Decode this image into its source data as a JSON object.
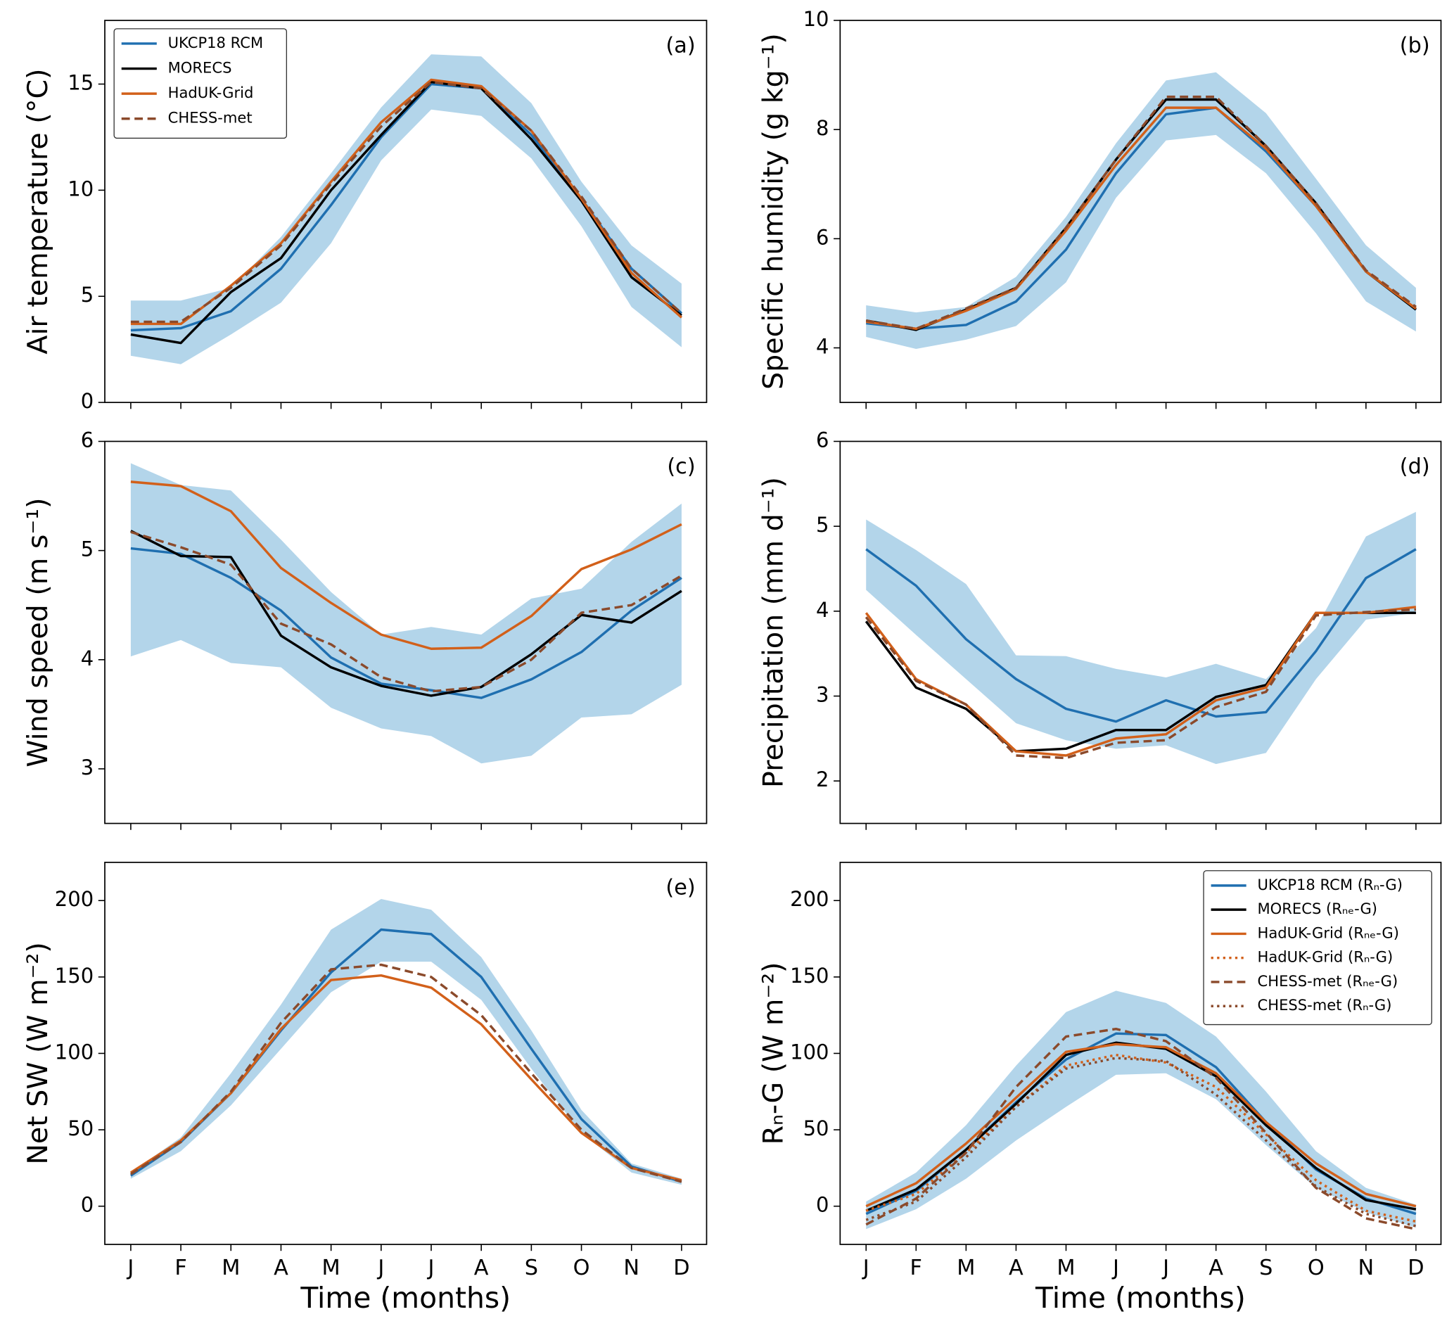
{
  "chart_data": [
    {
      "type": "line",
      "ylabel": "Air temperature (°C)",
      "panel_label": "(a)",
      "legend": "upper left",
      "categories": [
        "J",
        "F",
        "M",
        "A",
        "M",
        "J",
        "J",
        "A",
        "S",
        "O",
        "N",
        "D"
      ],
      "ylim": [
        0,
        18
      ],
      "yticks": [
        0,
        5,
        10,
        15
      ],
      "band": {
        "color": "#b3d5ea",
        "lower": [
          2.2,
          1.8,
          3.2,
          4.7,
          7.5,
          11.4,
          13.8,
          13.5,
          11.5,
          8.3,
          4.5,
          2.6
        ],
        "upper": [
          4.8,
          4.8,
          5.4,
          7.8,
          10.8,
          13.9,
          16.4,
          16.3,
          14.1,
          10.4,
          7.4,
          5.6
        ]
      },
      "series": [
        {
          "name": "UKCP18 RCM",
          "color": "#1f6fb0",
          "dash": "solid",
          "values": [
            3.4,
            3.5,
            4.3,
            6.3,
            9.3,
            12.5,
            15.0,
            14.8,
            12.6,
            9.6,
            6.3,
            4.2
          ]
        },
        {
          "name": "MORECS",
          "color": "#000000",
          "dash": "solid",
          "values": [
            3.2,
            2.8,
            5.2,
            6.8,
            10.0,
            12.6,
            15.1,
            14.8,
            12.4,
            9.5,
            5.9,
            4.1
          ]
        },
        {
          "name": "HadUK-Grid",
          "color": "#d2601a",
          "dash": "solid",
          "values": [
            3.7,
            3.7,
            5.5,
            7.5,
            10.4,
            13.2,
            15.2,
            14.9,
            12.8,
            9.6,
            6.1,
            4.0
          ]
        },
        {
          "name": "CHESS-met",
          "color": "#8b4a2b",
          "dash": "dashed",
          "values": [
            3.8,
            3.8,
            5.4,
            7.4,
            10.3,
            13.0,
            15.1,
            14.8,
            12.8,
            9.7,
            6.3,
            4.2
          ]
        }
      ]
    },
    {
      "type": "line",
      "ylabel": "Specific humidity (g kg⁻¹)",
      "panel_label": "(b)",
      "categories": [
        "J",
        "F",
        "M",
        "A",
        "M",
        "J",
        "J",
        "A",
        "S",
        "O",
        "N",
        "D"
      ],
      "ylim": [
        3,
        10
      ],
      "yticks": [
        4,
        6,
        8,
        10
      ],
      "band": {
        "color": "#b3d5ea",
        "lower": [
          4.2,
          3.98,
          4.15,
          4.4,
          5.2,
          6.75,
          7.8,
          7.9,
          7.2,
          6.1,
          4.85,
          4.3
        ],
        "upper": [
          4.78,
          4.65,
          4.75,
          5.3,
          6.4,
          7.75,
          8.9,
          9.05,
          8.3,
          7.1,
          5.88,
          5.1
        ]
      },
      "series": [
        {
          "name": "UKCP18 RCM",
          "color": "#1f6fb0",
          "dash": "solid",
          "values": [
            4.45,
            4.35,
            4.42,
            4.85,
            5.8,
            7.2,
            8.28,
            8.4,
            7.6,
            6.6,
            5.4,
            4.7
          ]
        },
        {
          "name": "MORECS",
          "color": "#000000",
          "dash": "solid",
          "values": [
            4.5,
            4.33,
            4.7,
            5.1,
            6.2,
            7.45,
            8.55,
            8.55,
            7.7,
            6.65,
            5.4,
            4.7
          ]
        },
        {
          "name": "HadUK-Grid",
          "color": "#d2601a",
          "dash": "solid",
          "values": [
            4.48,
            4.35,
            4.68,
            5.08,
            6.15,
            7.35,
            8.4,
            8.4,
            7.65,
            6.6,
            5.4,
            4.72
          ]
        },
        {
          "name": "CHESS-met",
          "color": "#8b4a2b",
          "dash": "dashed",
          "values": [
            4.5,
            4.35,
            4.72,
            5.1,
            6.2,
            7.45,
            8.6,
            8.6,
            7.7,
            6.65,
            5.42,
            4.75
          ]
        }
      ]
    },
    {
      "type": "line",
      "ylabel": "Wind speed (m s⁻¹)",
      "panel_label": "(c)",
      "categories": [
        "J",
        "F",
        "M",
        "A",
        "M",
        "J",
        "J",
        "A",
        "S",
        "O",
        "N",
        "D"
      ],
      "ylim": [
        2.5,
        6
      ],
      "yticks": [
        3,
        4,
        5,
        6
      ],
      "band": {
        "color": "#b3d5ea",
        "lower": [
          4.03,
          4.18,
          3.97,
          3.93,
          3.56,
          3.37,
          3.3,
          3.05,
          3.12,
          3.47,
          3.5,
          3.77
        ],
        "upper": [
          5.8,
          5.6,
          5.55,
          5.1,
          4.62,
          4.23,
          4.3,
          4.23,
          4.56,
          4.65,
          5.08,
          5.43
        ]
      },
      "series": [
        {
          "name": "UKCP18 RCM",
          "color": "#1f6fb0",
          "dash": "solid",
          "values": [
            5.02,
            4.97,
            4.75,
            4.45,
            4.02,
            3.78,
            3.72,
            3.65,
            3.82,
            4.07,
            4.45,
            4.75
          ]
        },
        {
          "name": "MORECS",
          "color": "#000000",
          "dash": "solid",
          "values": [
            5.18,
            4.95,
            4.94,
            4.22,
            3.93,
            3.76,
            3.67,
            3.75,
            4.05,
            4.41,
            4.34,
            4.63
          ]
        },
        {
          "name": "HadUK-Grid",
          "color": "#d2601a",
          "dash": "solid",
          "values": [
            5.63,
            5.59,
            5.36,
            4.84,
            4.52,
            4.23,
            4.1,
            4.11,
            4.4,
            4.83,
            5.01,
            5.24
          ]
        },
        {
          "name": "CHESS-met",
          "color": "#8b4a2b",
          "dash": "dashed",
          "values": [
            5.17,
            5.03,
            4.87,
            4.33,
            4.14,
            3.84,
            3.71,
            3.75,
            4.0,
            4.43,
            4.5,
            4.77
          ]
        }
      ]
    },
    {
      "type": "line",
      "ylabel": "Precipitation (mm d⁻¹)",
      "panel_label": "(d)",
      "categories": [
        "J",
        "F",
        "M",
        "A",
        "M",
        "J",
        "J",
        "A",
        "S",
        "O",
        "N",
        "D"
      ],
      "ylim": [
        1.5,
        6
      ],
      "yticks": [
        2,
        3,
        4,
        5,
        6
      ],
      "band": {
        "color": "#b3d5ea",
        "lower": [
          4.25,
          3.72,
          3.2,
          2.68,
          2.48,
          2.38,
          2.42,
          2.2,
          2.33,
          3.2,
          3.9,
          3.98
        ],
        "upper": [
          5.08,
          4.72,
          4.32,
          3.48,
          3.47,
          3.32,
          3.22,
          3.38,
          3.2,
          3.8,
          4.88,
          5.17
        ]
      },
      "series": [
        {
          "name": "UKCP18 RCM",
          "color": "#1f6fb0",
          "dash": "solid",
          "values": [
            4.73,
            4.3,
            3.67,
            3.2,
            2.85,
            2.7,
            2.95,
            2.76,
            2.81,
            3.53,
            4.39,
            4.73
          ]
        },
        {
          "name": "MORECS",
          "color": "#000000",
          "dash": "solid",
          "values": [
            3.88,
            3.1,
            2.85,
            2.35,
            2.38,
            2.6,
            2.6,
            2.99,
            3.13,
            3.98,
            3.98,
            3.98
          ]
        },
        {
          "name": "HadUK-Grid",
          "color": "#d2601a",
          "dash": "solid",
          "values": [
            3.98,
            3.2,
            2.9,
            2.35,
            2.3,
            2.5,
            2.55,
            2.95,
            3.1,
            3.98,
            3.98,
            4.05
          ]
        },
        {
          "name": "CHESS-met",
          "color": "#8b4a2b",
          "dash": "dashed",
          "values": [
            3.93,
            3.18,
            2.9,
            2.3,
            2.27,
            2.45,
            2.48,
            2.87,
            3.05,
            3.95,
            3.99,
            4.02
          ]
        }
      ]
    },
    {
      "type": "line",
      "ylabel": "Net SW (W m⁻²)",
      "xlabel": "Time (months)",
      "panel_label": "(e)",
      "categories": [
        "J",
        "F",
        "M",
        "A",
        "M",
        "J",
        "J",
        "A",
        "S",
        "O",
        "N",
        "D"
      ],
      "ylim": [
        -25,
        225
      ],
      "yticks": [
        0,
        50,
        100,
        150,
        200
      ],
      "band": {
        "color": "#b3d5ea",
        "lower": [
          18,
          36,
          66,
          103,
          140,
          160,
          160,
          135,
          90,
          48,
          22,
          14
        ],
        "upper": [
          22,
          45,
          87,
          132,
          181,
          201,
          194,
          163,
          115,
          63,
          28,
          18
        ]
      },
      "series": [
        {
          "name": "UKCP18 RCM",
          "color": "#1f6fb0",
          "dash": "solid",
          "values": [
            20,
            42,
            74,
            115,
            153,
            181,
            178,
            150,
            103,
            57,
            26,
            16
          ]
        },
        {
          "name": "HadUK-Grid",
          "color": "#d2601a",
          "dash": "solid",
          "values": [
            22,
            43,
            74,
            116,
            148,
            151,
            143,
            119,
            83,
            48,
            25,
            17
          ]
        },
        {
          "name": "CHESS-met",
          "color": "#8b4a2b",
          "dash": "dashed",
          "values": [
            21,
            42,
            75,
            120,
            155,
            158,
            150,
            125,
            87,
            50,
            25,
            16
          ]
        }
      ]
    },
    {
      "type": "line",
      "ylabel": "Rₙ-G (W m⁻²)",
      "xlabel": "Time (months)",
      "panel_label": "(f)",
      "legend": "upper right",
      "categories": [
        "J",
        "F",
        "M",
        "A",
        "M",
        "J",
        "J",
        "A",
        "S",
        "O",
        "N",
        "D"
      ],
      "ylim": [
        -25,
        225
      ],
      "yticks": [
        0,
        50,
        100,
        150,
        200
      ],
      "band": {
        "color": "#b3d5ea",
        "lower": [
          -15,
          -2,
          18,
          43,
          65,
          86,
          87,
          70,
          40,
          12,
          -4,
          -14
        ],
        "upper": [
          3,
          22,
          53,
          92,
          127,
          141,
          133,
          111,
          75,
          36,
          12,
          1
        ]
      },
      "series": [
        {
          "name": "UKCP18 RCM (Rₙ-G)",
          "color": "#1f6fb0",
          "dash": "solid",
          "values": [
            -5,
            10,
            37,
            68,
            96,
            113,
            112,
            91,
            55,
            24,
            5,
            -5
          ]
        },
        {
          "name": "MORECS (Rₙₑ-G)",
          "color": "#000000",
          "dash": "solid",
          "values": [
            -3,
            11,
            37,
            67,
            99,
            107,
            103,
            85,
            53,
            25,
            4,
            -2
          ]
        },
        {
          "name": "HadUK-Grid (Rₙₑ-G)",
          "color": "#d2601a",
          "dash": "solid",
          "values": [
            0,
            15,
            41,
            71,
            101,
            106,
            104,
            87,
            55,
            28,
            8,
            0
          ]
        },
        {
          "name": "HadUK-Grid (Rₙ-G)",
          "color": "#d2601a",
          "dash": "dotted",
          "values": [
            -3,
            8,
            35,
            65,
            92,
            99,
            94,
            78,
            47,
            17,
            -3,
            -10
          ]
        },
        {
          "name": "CHESS-met (Rₙₑ-G)",
          "color": "#8b4a2b",
          "dash": "dashed",
          "values": [
            -12,
            5,
            35,
            78,
            111,
            116,
            108,
            84,
            48,
            12,
            -8,
            -15
          ]
        },
        {
          "name": "CHESS-met (Rₙ-G)",
          "color": "#8b4a2b",
          "dash": "dotted",
          "values": [
            -9,
            3,
            32,
            65,
            90,
            97,
            95,
            73,
            43,
            13,
            -5,
            -13
          ]
        }
      ]
    }
  ]
}
